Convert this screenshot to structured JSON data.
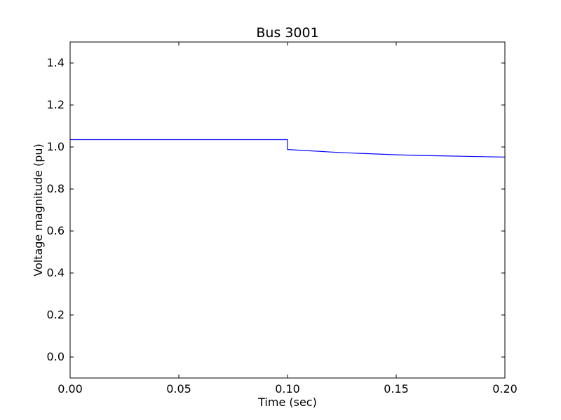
{
  "chart_data": {
    "type": "line",
    "title": "Bus 3001",
    "xlabel": "Time (sec)",
    "ylabel": "Voltage magnitude (pu)",
    "xlim": [
      0.0,
      0.2
    ],
    "ylim": [
      -0.1,
      1.5
    ],
    "xticks": [
      "0.00",
      "0.05",
      "0.10",
      "0.15",
      "0.20"
    ],
    "yticks": [
      "0.0",
      "0.2",
      "0.4",
      "0.6",
      "0.8",
      "1.0",
      "1.2",
      "1.4"
    ],
    "grid": false,
    "line_color": "#0000ff",
    "series": [
      {
        "x": [
          0.0,
          0.05,
          0.1,
          0.1,
          0.11,
          0.12,
          0.13,
          0.14,
          0.15,
          0.16,
          0.17,
          0.18,
          0.19,
          0.2
        ],
        "y": [
          1.035,
          1.035,
          1.035,
          0.988,
          0.982,
          0.976,
          0.971,
          0.967,
          0.963,
          0.96,
          0.958,
          0.956,
          0.954,
          0.952
        ]
      }
    ]
  }
}
